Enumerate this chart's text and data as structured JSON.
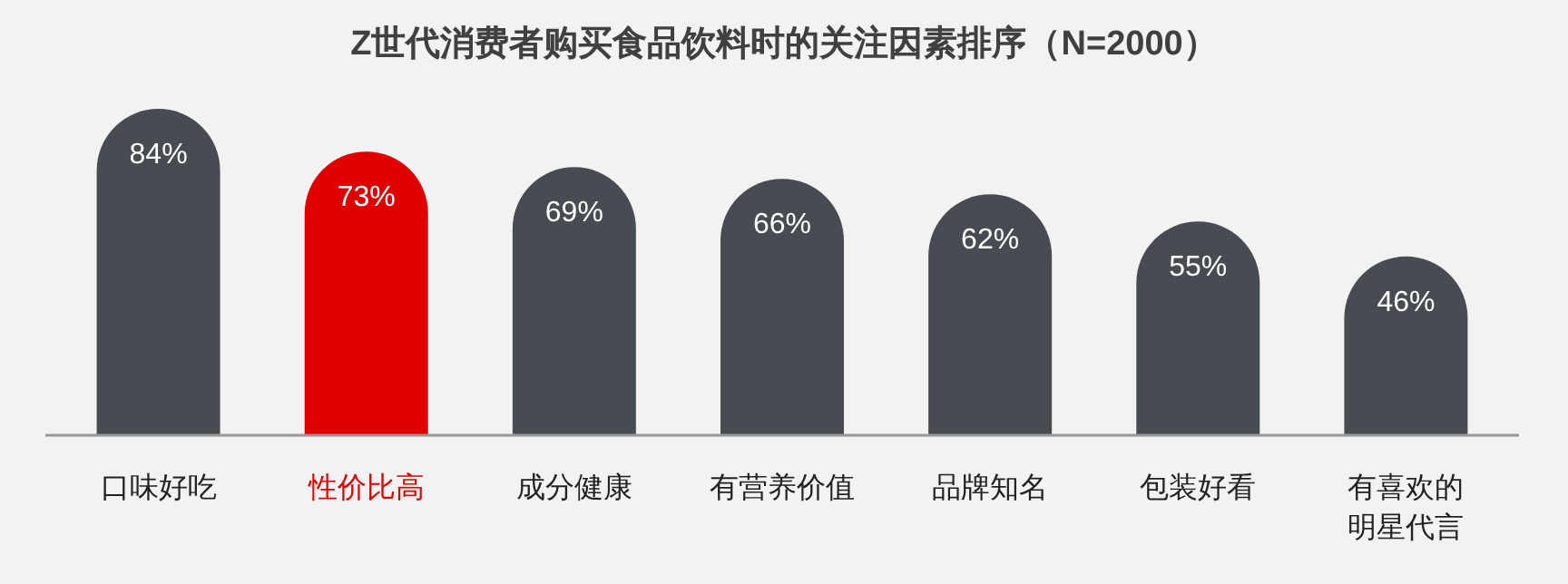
{
  "chart_data": {
    "type": "bar",
    "title": "Z世代消费者购买食品饮料时的关注因素排序（N=2000）",
    "categories": [
      "口味好吃",
      "性价比高",
      "成分健康",
      "有营养价值",
      "品牌知名",
      "包装好看",
      "有喜欢的明星代言"
    ],
    "values": [
      84,
      73,
      69,
      66,
      62,
      55,
      46
    ],
    "colors": [
      "#474b52",
      "#e00000",
      "#474b52",
      "#474b52",
      "#474b52",
      "#474b52",
      "#474b52"
    ],
    "value_labels": [
      "84%",
      "73%",
      "69%",
      "66%",
      "62%",
      "55%",
      "46%"
    ]
  }
}
